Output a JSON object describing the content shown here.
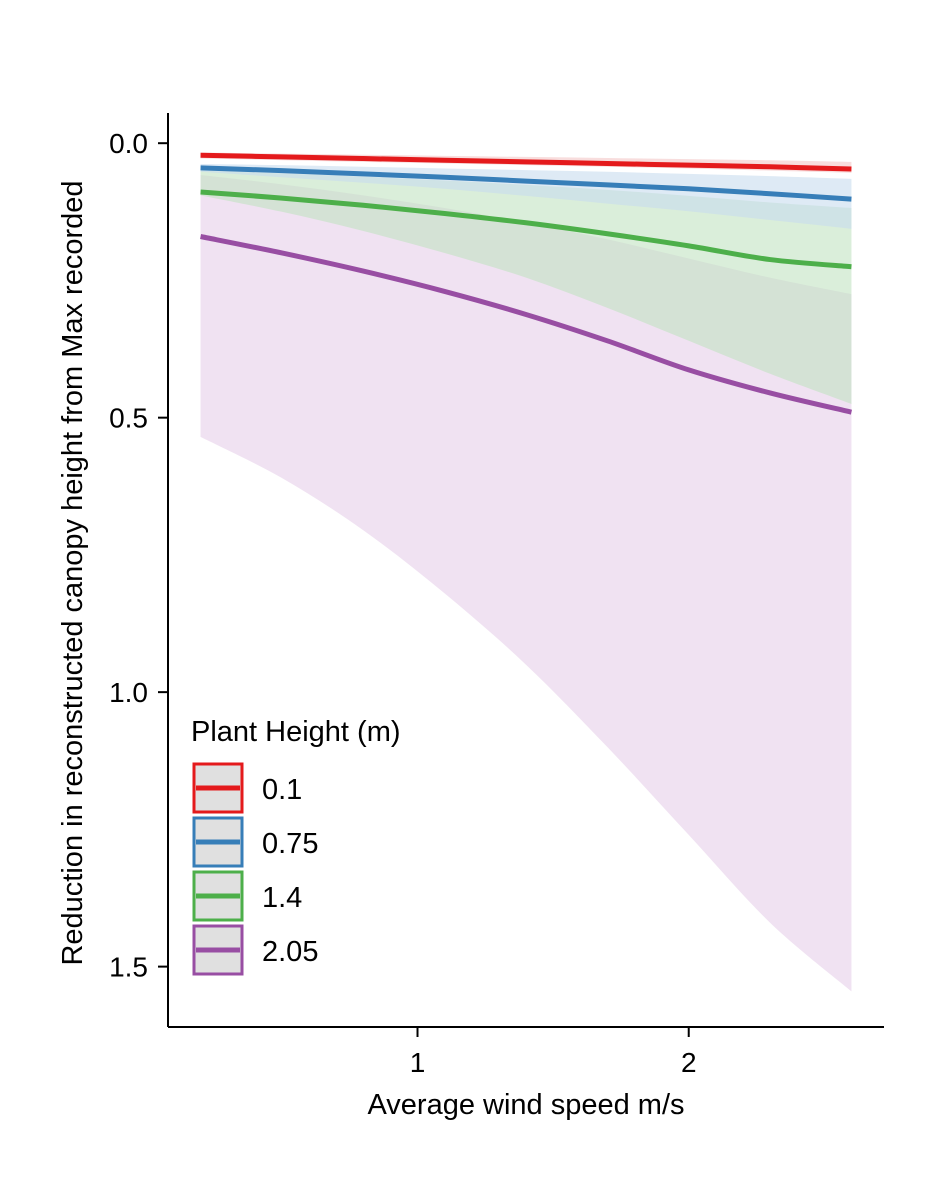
{
  "chart_data": {
    "type": "line",
    "title": "",
    "xlabel": "Average wind speed m/s",
    "ylabel": "Reduction in reconstructed canopy height from Max recorded",
    "xlim": [
      0.08,
      2.72
    ],
    "ylim": [
      -0.055,
      1.61
    ],
    "y_reversed": true,
    "x_ticks": [
      1,
      2
    ],
    "x_tick_labels": [
      "1",
      "2"
    ],
    "y_ticks": [
      0.0,
      0.5,
      1.0,
      1.5
    ],
    "y_tick_labels": [
      "0.0",
      "0.5",
      "1.0",
      "1.5"
    ],
    "grid": false,
    "legend": {
      "title": "Plant Height (m)",
      "placement": "bottom-left"
    },
    "x": [
      0.2,
      0.5,
      0.8,
      1.1,
      1.4,
      1.7,
      2.0,
      2.3,
      2.6
    ],
    "series": [
      {
        "name": "0.1",
        "color": "#e41a1c",
        "band_color": "#f4c6c6",
        "values": [
          0.022,
          0.025,
          0.028,
          0.031,
          0.034,
          0.037,
          0.04,
          0.043,
          0.047
        ],
        "lower": [
          0.017,
          0.019,
          0.021,
          0.023,
          0.025,
          0.027,
          0.029,
          0.031,
          0.034
        ],
        "upper": [
          0.028,
          0.031,
          0.034,
          0.037,
          0.04,
          0.043,
          0.046,
          0.05,
          0.054
        ]
      },
      {
        "name": "0.75",
        "color": "#377eb8",
        "band_color": "#c8dcef",
        "values": [
          0.045,
          0.05,
          0.056,
          0.062,
          0.069,
          0.076,
          0.083,
          0.092,
          0.102
        ],
        "lower": [
          0.038,
          0.04,
          0.043,
          0.046,
          0.049,
          0.052,
          0.056,
          0.06,
          0.065
        ],
        "upper": [
          0.052,
          0.062,
          0.072,
          0.083,
          0.096,
          0.11,
          0.124,
          0.14,
          0.156
        ]
      },
      {
        "name": "1.4",
        "color": "#4daf4a",
        "band_color": "#c2e3c1",
        "values": [
          0.089,
          0.1,
          0.113,
          0.128,
          0.145,
          0.165,
          0.187,
          0.212,
          0.225
        ],
        "lower": [
          0.05,
          0.055,
          0.061,
          0.068,
          0.076,
          0.085,
          0.096,
          0.108,
          0.118
        ],
        "upper": [
          0.095,
          0.125,
          0.16,
          0.2,
          0.245,
          0.3,
          0.36,
          0.42,
          0.475
        ]
      },
      {
        "name": "2.05",
        "color": "#984ea3",
        "band_color": "#e6cfe9",
        "values": [
          0.17,
          0.2,
          0.233,
          0.27,
          0.312,
          0.36,
          0.413,
          0.455,
          0.49
        ],
        "lower": [
          0.058,
          0.075,
          0.095,
          0.118,
          0.145,
          0.175,
          0.21,
          0.245,
          0.275
        ],
        "upper": [
          0.535,
          0.61,
          0.705,
          0.82,
          0.95,
          1.1,
          1.26,
          1.42,
          1.545
        ]
      }
    ]
  }
}
